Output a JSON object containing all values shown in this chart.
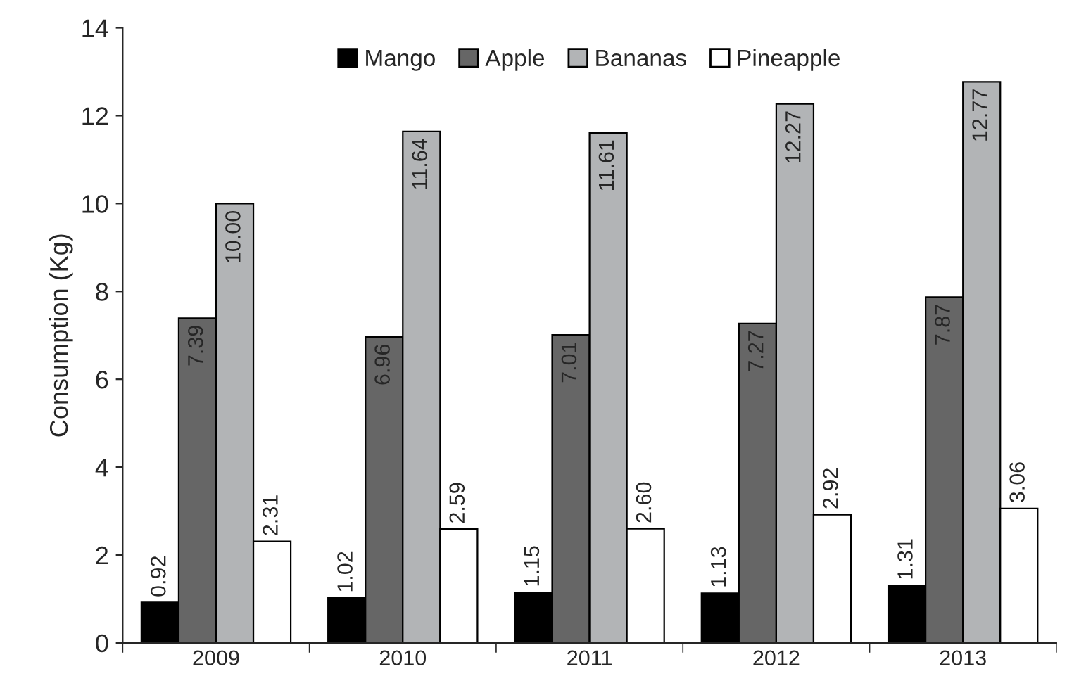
{
  "chart_data": {
    "type": "bar",
    "ylabel": "Consumption (Kg)",
    "categories": [
      "2009",
      "2010",
      "2011",
      "2012",
      "2013"
    ],
    "series": [
      {
        "name": "Mango",
        "color": "#000000",
        "values": [
          0.92,
          1.02,
          1.15,
          1.13,
          1.31
        ],
        "value_labels": [
          "0.92",
          "1.02",
          "1.15",
          "1.13",
          "1.31"
        ]
      },
      {
        "name": "Apple",
        "color": "#666666",
        "values": [
          7.39,
          6.96,
          7.01,
          7.27,
          7.87
        ],
        "value_labels": [
          "7.39",
          "6.96",
          "7.01",
          "7.27",
          "7.87"
        ]
      },
      {
        "name": "Bananas",
        "color": "#b2b4b6",
        "values": [
          10.0,
          11.64,
          11.61,
          12.27,
          12.77
        ],
        "value_labels": [
          "10.00",
          "11.64",
          "11.61",
          "12.27",
          "12.77"
        ]
      },
      {
        "name": "Pineapple",
        "color": "#ffffff",
        "values": [
          2.31,
          2.59,
          2.6,
          2.92,
          3.06
        ],
        "value_labels": [
          "2.31",
          "2.59",
          "2.60",
          "2.92",
          "3.06"
        ]
      }
    ],
    "ylim": [
      0,
      14
    ],
    "yticks": [
      0,
      2,
      4,
      6,
      8,
      10,
      12,
      14
    ],
    "legend": "top",
    "grid": false
  }
}
